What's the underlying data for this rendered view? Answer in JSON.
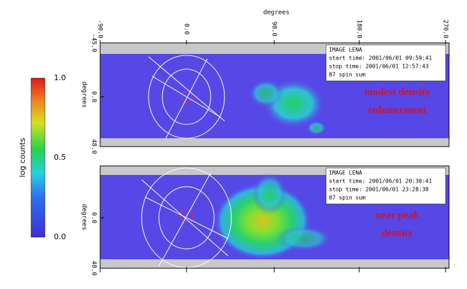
{
  "colorbar": {
    "label": "log counts",
    "ticks": [
      "1.0",
      "0.5",
      "0.0"
    ]
  },
  "x_axis": {
    "label": "degrees",
    "ticks": [
      "-90.0",
      "0.0",
      "90.0",
      "180.0",
      "270.0"
    ]
  },
  "panels": [
    {
      "y_axis": {
        "label": "degrees",
        "ticks": [
          "-45.0",
          "0.0",
          "48.0"
        ]
      },
      "info": [
        "IMAGE LENA",
        "start time: 2001/06/01 09:59:41",
        "stop time: 2001/06/01 12:57:43",
        "87 spin sum"
      ],
      "annotation": [
        "modest density",
        "enhancement"
      ]
    },
    {
      "y_axis": {
        "label": "degrees",
        "ticks": [
          "0.0",
          "48.0"
        ]
      },
      "info": [
        "IMAGE LENA",
        "start time: 2001/06/01 20:30:41",
        "stop time: 2001/06/01 23:28:38",
        "87 spin sum"
      ],
      "annotation": [
        "near peak",
        "density"
      ]
    }
  ]
}
